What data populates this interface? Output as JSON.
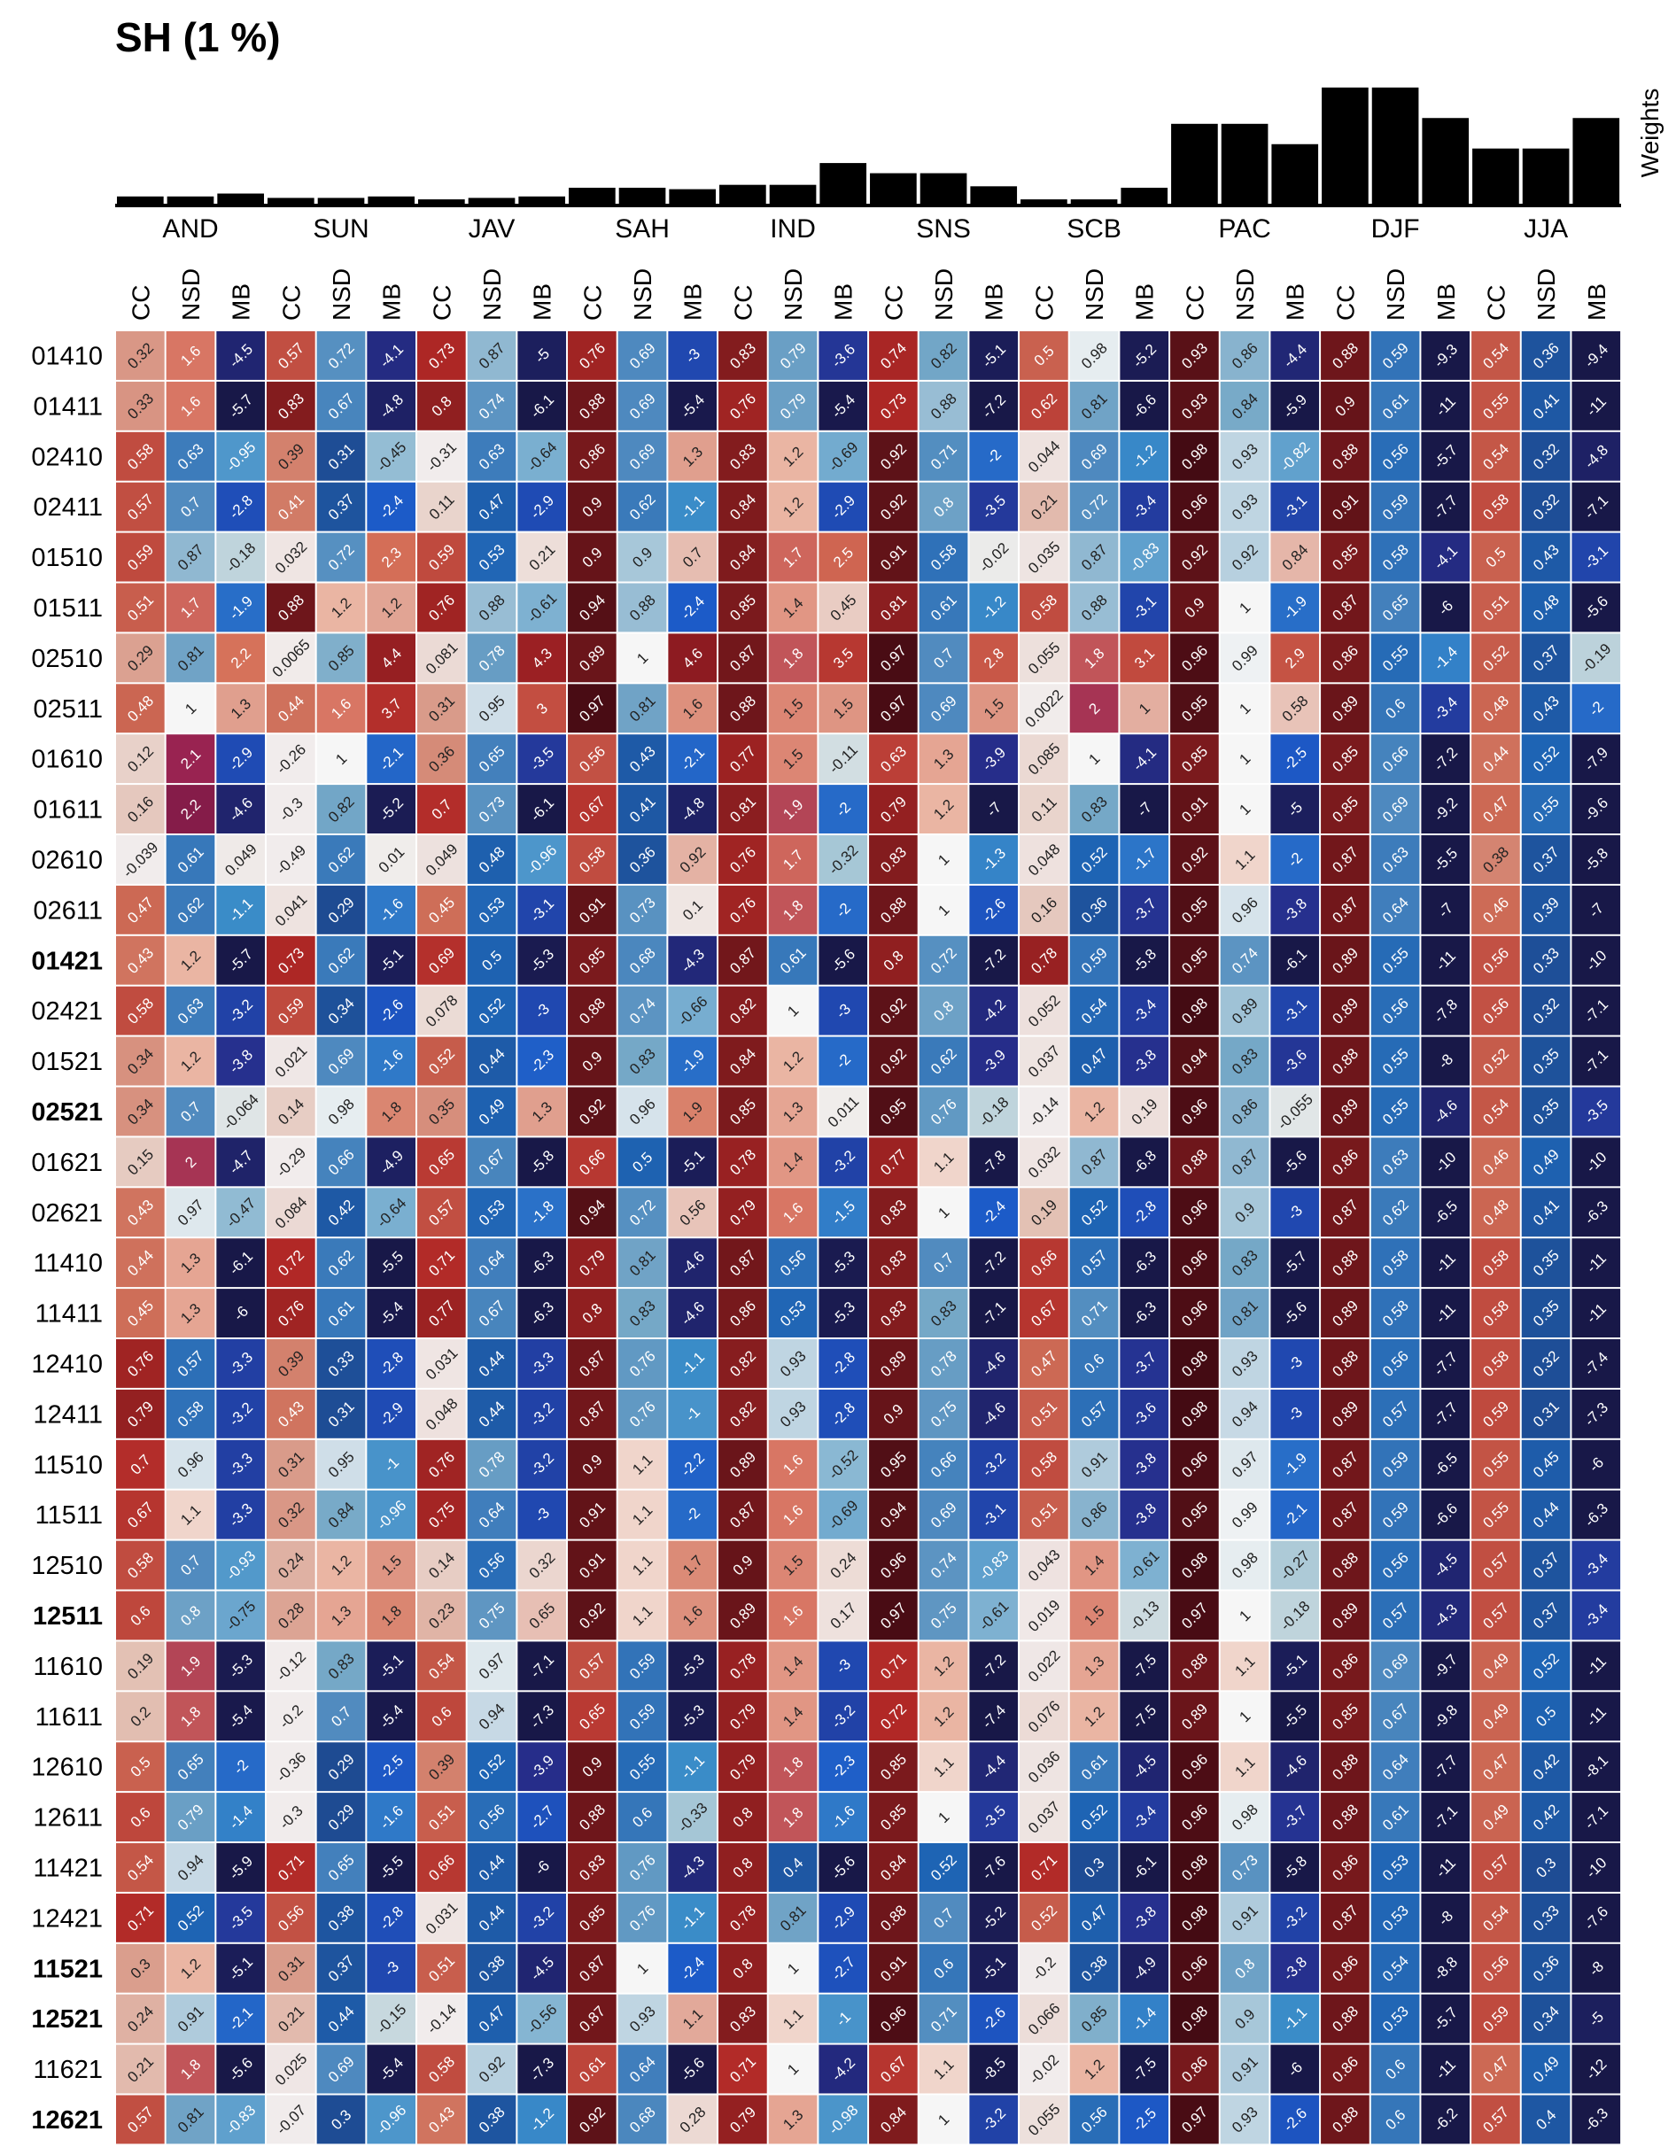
{
  "chart_data": {
    "type": "heatmap",
    "title": "SH (1 %)",
    "weights_label": "Weights",
    "regions": [
      "AND",
      "SUN",
      "JAV",
      "SAH",
      "IND",
      "SNS",
      "SCB",
      "PAC",
      "DJF",
      "JJA"
    ],
    "metrics": [
      "CC",
      "NSD",
      "MB"
    ],
    "weights": [
      0.05,
      0.05,
      0.07,
      0.04,
      0.04,
      0.05,
      0.03,
      0.04,
      0.05,
      0.11,
      0.11,
      0.1,
      0.13,
      0.13,
      0.28,
      0.21,
      0.21,
      0.12,
      0.03,
      0.03,
      0.11,
      0.55,
      0.55,
      0.41,
      0.8,
      0.8,
      0.59,
      0.38,
      0.38,
      0.59
    ],
    "row_labels": [
      "01410",
      "01411",
      "02410",
      "02411",
      "01510",
      "01511",
      "02510",
      "02511",
      "01610",
      "01611",
      "02610",
      "02611",
      "01421",
      "02421",
      "01521",
      "02521",
      "01621",
      "02621",
      "11410",
      "11411",
      "12410",
      "12411",
      "11510",
      "11511",
      "12510",
      "12511",
      "11610",
      "11611",
      "12610",
      "12611",
      "11421",
      "12421",
      "11521",
      "12521",
      "11621",
      "12621"
    ],
    "bold_rows": [
      "01421",
      "02521",
      "12511",
      "11521",
      "12521",
      "12621"
    ],
    "values": [
      [
        "0.32",
        "1.6",
        "-4.5",
        "0.57",
        "0.72",
        "-4.1",
        "0.73",
        "0.87",
        "-5",
        "0.76",
        "0.69",
        "-3",
        "0.83",
        "0.79",
        "-3.6",
        "0.74",
        "0.82",
        "-5.1",
        "0.5",
        "0.98",
        "-5.2",
        "0.93",
        "0.86",
        "-4.4",
        "0.88",
        "0.59",
        "-9.3",
        "0.54",
        "0.36",
        "-9.4"
      ],
      [
        "0.33",
        "1.6",
        "-5.7",
        "0.83",
        "0.67",
        "-4.8",
        "0.8",
        "0.74",
        "-6.1",
        "0.88",
        "0.69",
        "-5.4",
        "0.76",
        "0.79",
        "-5.4",
        "0.73",
        "0.88",
        "-7.2",
        "0.62",
        "0.81",
        "-6.6",
        "0.93",
        "0.84",
        "-5.9",
        "0.9",
        "0.61",
        "-11",
        "0.55",
        "0.41",
        "-11"
      ],
      [
        "0.58",
        "0.63",
        "-0.95",
        "0.39",
        "0.31",
        "-0.45",
        "-0.31",
        "0.63",
        "-0.64",
        "0.86",
        "0.69",
        "1.3",
        "0.83",
        "1.2",
        "-0.69",
        "0.92",
        "0.71",
        "-2",
        "0.044",
        "0.69",
        "-1.2",
        "0.98",
        "0.93",
        "-0.82",
        "0.88",
        "0.56",
        "-5.7",
        "0.54",
        "0.32",
        "-4.8"
      ],
      [
        "0.57",
        "0.7",
        "-2.8",
        "0.41",
        "0.37",
        "-2.4",
        "0.11",
        "0.47",
        "-2.9",
        "0.9",
        "0.62",
        "-1.1",
        "0.84",
        "1.2",
        "-2.9",
        "0.92",
        "0.8",
        "-3.5",
        "0.21",
        "0.72",
        "-3.4",
        "0.96",
        "0.93",
        "-3.1",
        "0.91",
        "0.59",
        "-7.7",
        "0.58",
        "0.32",
        "-7.1"
      ],
      [
        "0.59",
        "0.87",
        "-0.18",
        "0.032",
        "0.72",
        "2.3",
        "0.59",
        "0.53",
        "0.21",
        "0.9",
        "0.9",
        "0.7",
        "0.84",
        "1.7",
        "2.5",
        "0.91",
        "0.58",
        "-0.02",
        "0.035",
        "0.87",
        "-0.83",
        "0.92",
        "0.92",
        "0.84",
        "0.85",
        "0.58",
        "-4.1",
        "0.5",
        "0.43",
        "-3.1"
      ],
      [
        "0.51",
        "1.7",
        "-1.9",
        "0.88",
        "1.2",
        "1.2",
        "0.76",
        "0.88",
        "-0.61",
        "0.94",
        "0.88",
        "-2.4",
        "0.85",
        "1.4",
        "0.45",
        "0.81",
        "0.61",
        "-1.2",
        "0.58",
        "0.88",
        "-3.1",
        "0.9",
        "1",
        "-1.9",
        "0.87",
        "0.65",
        "-6",
        "0.51",
        "0.48",
        "-5.6"
      ],
      [
        "0.29",
        "0.81",
        "2.2",
        "0.0065",
        "0.85",
        "4.4",
        "0.081",
        "0.78",
        "4.3",
        "0.89",
        "1",
        "4.6",
        "0.87",
        "1.8",
        "3.5",
        "0.97",
        "0.7",
        "2.8",
        "0.055",
        "1.8",
        "3.1",
        "0.96",
        "0.99",
        "2.9",
        "0.86",
        "0.55",
        "-1.4",
        "0.52",
        "0.37",
        "-0.19"
      ],
      [
        "0.48",
        "1",
        "1.3",
        "0.44",
        "1.6",
        "3.7",
        "0.31",
        "0.95",
        "3",
        "0.97",
        "0.81",
        "1.6",
        "0.88",
        "1.5",
        "1.5",
        "0.97",
        "0.69",
        "1.5",
        "0.0022",
        "2",
        "1",
        "0.95",
        "1",
        "0.58",
        "0.89",
        "0.6",
        "-3.4",
        "0.48",
        "0.43",
        "-2"
      ],
      [
        "0.12",
        "2.1",
        "-2.9",
        "-0.26",
        "1",
        "-2.1",
        "0.36",
        "0.65",
        "-3.5",
        "0.56",
        "0.43",
        "-2.1",
        "0.77",
        "1.5",
        "-0.11",
        "0.63",
        "1.3",
        "-3.9",
        "0.085",
        "1",
        "-4.1",
        "0.85",
        "1",
        "-2.5",
        "0.85",
        "0.66",
        "-7.2",
        "0.44",
        "0.52",
        "-7.9"
      ],
      [
        "0.16",
        "2.2",
        "-4.6",
        "-0.3",
        "0.82",
        "-5.2",
        "0.7",
        "0.73",
        "-6.1",
        "0.67",
        "0.41",
        "-4.8",
        "0.81",
        "1.9",
        "-2",
        "0.79",
        "1.2",
        "-7",
        "0.11",
        "0.83",
        "-7",
        "0.91",
        "1",
        "-5",
        "0.85",
        "0.69",
        "-9.2",
        "0.47",
        "0.55",
        "-9.6"
      ],
      [
        "-0.039",
        "0.61",
        "0.049",
        "-0.49",
        "0.62",
        "0.01",
        "0.049",
        "0.48",
        "-0.96",
        "0.58",
        "0.36",
        "0.92",
        "0.76",
        "1.7",
        "-0.32",
        "0.83",
        "1",
        "-1.3",
        "0.048",
        "0.52",
        "-1.7",
        "0.92",
        "1.1",
        "-2",
        "0.87",
        "0.63",
        "-5.5",
        "0.38",
        "0.37",
        "-5.8"
      ],
      [
        "0.47",
        "0.62",
        "-1.1",
        "0.041",
        "0.29",
        "-1.6",
        "0.45",
        "0.53",
        "-3.1",
        "0.91",
        "0.73",
        "0.1",
        "0.76",
        "1.8",
        "-2",
        "0.88",
        "1",
        "-2.6",
        "0.16",
        "0.36",
        "-3.7",
        "0.95",
        "0.96",
        "-3.8",
        "0.87",
        "0.64",
        "-7",
        "0.46",
        "0.39",
        "-7"
      ],
      [
        "0.43",
        "1.2",
        "-5.7",
        "0.73",
        "0.62",
        "-5.1",
        "0.69",
        "0.5",
        "-5.3",
        "0.85",
        "0.68",
        "-4.3",
        "0.87",
        "0.61",
        "-5.6",
        "0.8",
        "0.72",
        "-7.2",
        "0.78",
        "0.59",
        "-5.8",
        "0.95",
        "0.74",
        "-6.1",
        "0.89",
        "0.55",
        "-11",
        "0.56",
        "0.33",
        "-10"
      ],
      [
        "0.58",
        "0.63",
        "-3.2",
        "0.59",
        "0.34",
        "-2.6",
        "0.078",
        "0.52",
        "-3",
        "0.88",
        "0.74",
        "-0.66",
        "0.82",
        "1",
        "-3",
        "0.92",
        "0.8",
        "-4.2",
        "0.052",
        "0.54",
        "-3.4",
        "0.98",
        "0.89",
        "-3.1",
        "0.89",
        "0.56",
        "-7.8",
        "0.56",
        "0.32",
        "-7.1"
      ],
      [
        "0.34",
        "1.2",
        "-3.8",
        "0.021",
        "0.69",
        "-1.6",
        "0.52",
        "0.44",
        "-2.3",
        "0.9",
        "0.83",
        "-1.9",
        "0.84",
        "1.2",
        "-2",
        "0.92",
        "0.62",
        "-3.9",
        "0.037",
        "0.47",
        "-3.8",
        "0.94",
        "0.83",
        "-3.6",
        "0.88",
        "0.55",
        "-8",
        "0.52",
        "0.35",
        "-7.1"
      ],
      [
        "0.34",
        "0.7",
        "-0.064",
        "0.14",
        "0.98",
        "1.8",
        "0.35",
        "0.49",
        "1.3",
        "0.92",
        "0.96",
        "1.9",
        "0.85",
        "1.3",
        "0.011",
        "0.95",
        "0.76",
        "-0.18",
        "-0.14",
        "1.2",
        "0.19",
        "0.96",
        "0.86",
        "-0.055",
        "0.89",
        "0.55",
        "-4.6",
        "0.54",
        "0.35",
        "-3.5"
      ],
      [
        "0.15",
        "2",
        "-4.7",
        "-0.29",
        "0.66",
        "-4.9",
        "0.65",
        "0.67",
        "-5.8",
        "0.66",
        "0.5",
        "-5.1",
        "0.78",
        "1.4",
        "-3.2",
        "0.77",
        "1.1",
        "-7.8",
        "0.032",
        "0.87",
        "-6.8",
        "0.88",
        "0.87",
        "-5.6",
        "0.86",
        "0.63",
        "-10",
        "0.46",
        "0.49",
        "-10"
      ],
      [
        "0.43",
        "0.97",
        "-0.47",
        "0.084",
        "0.42",
        "-0.64",
        "0.57",
        "0.53",
        "-1.8",
        "0.94",
        "0.72",
        "0.56",
        "0.79",
        "1.6",
        "-1.5",
        "0.83",
        "1",
        "-2.4",
        "0.19",
        "0.52",
        "-2.8",
        "0.96",
        "0.9",
        "-3",
        "0.87",
        "0.62",
        "-6.5",
        "0.48",
        "0.41",
        "-6.3"
      ],
      [
        "0.44",
        "1.3",
        "-6.1",
        "0.72",
        "0.62",
        "-5.5",
        "0.71",
        "0.64",
        "-6.3",
        "0.79",
        "0.81",
        "-4.6",
        "0.87",
        "0.56",
        "-5.3",
        "0.83",
        "0.7",
        "-7.2",
        "0.66",
        "0.57",
        "-6.3",
        "0.96",
        "0.83",
        "-5.7",
        "0.88",
        "0.58",
        "-11",
        "0.58",
        "0.35",
        "-11"
      ],
      [
        "0.45",
        "1.3",
        "-6",
        "0.76",
        "0.61",
        "-5.4",
        "0.77",
        "0.67",
        "-6.3",
        "0.8",
        "0.83",
        "-4.6",
        "0.86",
        "0.53",
        "-5.3",
        "0.83",
        "0.83",
        "-7.1",
        "0.67",
        "0.71",
        "-6.3",
        "0.96",
        "0.81",
        "-5.6",
        "0.89",
        "0.58",
        "-11",
        "0.58",
        "0.35",
        "-11"
      ],
      [
        "0.76",
        "0.57",
        "-3.3",
        "0.39",
        "0.33",
        "-2.8",
        "0.031",
        "0.44",
        "-3.3",
        "0.87",
        "0.76",
        "-1.1",
        "0.82",
        "0.93",
        "-2.8",
        "0.89",
        "0.78",
        "-4.6",
        "0.47",
        "0.6",
        "-3.7",
        "0.98",
        "0.93",
        "-3",
        "0.88",
        "0.56",
        "-7.7",
        "0.58",
        "0.32",
        "-7.4"
      ],
      [
        "0.79",
        "0.58",
        "-3.2",
        "0.43",
        "0.31",
        "-2.9",
        "0.048",
        "0.44",
        "-3.2",
        "0.87",
        "0.76",
        "-1",
        "0.82",
        "0.93",
        "-2.8",
        "0.9",
        "0.75",
        "-4.6",
        "0.51",
        "0.57",
        "-3.6",
        "0.98",
        "0.94",
        "-3",
        "0.89",
        "0.57",
        "-7.7",
        "0.59",
        "0.31",
        "-7.3"
      ],
      [
        "0.7",
        "0.96",
        "-3.3",
        "0.31",
        "0.95",
        "-1",
        "0.76",
        "0.78",
        "-3.2",
        "0.9",
        "1.1",
        "-2.2",
        "0.89",
        "1.6",
        "-0.52",
        "0.95",
        "0.66",
        "-3.2",
        "0.58",
        "0.91",
        "-3.8",
        "0.96",
        "0.97",
        "-1.9",
        "0.87",
        "0.59",
        "-6.5",
        "0.55",
        "0.45",
        "-6"
      ],
      [
        "0.67",
        "1.1",
        "-3.3",
        "0.32",
        "0.84",
        "-0.96",
        "0.75",
        "0.64",
        "-3",
        "0.91",
        "1.1",
        "-2",
        "0.87",
        "1.6",
        "-0.69",
        "0.94",
        "0.69",
        "-3.1",
        "0.51",
        "0.86",
        "-3.8",
        "0.95",
        "0.99",
        "-2.1",
        "0.87",
        "0.59",
        "-6.6",
        "0.55",
        "0.44",
        "-6.3"
      ],
      [
        "0.58",
        "0.7",
        "-0.93",
        "0.24",
        "1.2",
        "1.5",
        "0.14",
        "0.56",
        "0.32",
        "0.91",
        "1.1",
        "1.7",
        "0.9",
        "1.5",
        "0.24",
        "0.96",
        "0.74",
        "-0.83",
        "0.043",
        "1.4",
        "-0.61",
        "0.98",
        "0.98",
        "-0.27",
        "0.88",
        "0.56",
        "-4.5",
        "0.57",
        "0.37",
        "-3.4"
      ],
      [
        "0.6",
        "0.8",
        "-0.75",
        "0.28",
        "1.3",
        "1.8",
        "0.23",
        "0.75",
        "0.65",
        "0.92",
        "1.1",
        "1.6",
        "0.89",
        "1.6",
        "0.17",
        "0.97",
        "0.75",
        "-0.61",
        "0.019",
        "1.5",
        "-0.13",
        "0.97",
        "1",
        "-0.18",
        "0.89",
        "0.57",
        "-4.3",
        "0.57",
        "0.37",
        "-3.4"
      ],
      [
        "0.19",
        "1.9",
        "-5.3",
        "-0.12",
        "0.83",
        "-5.1",
        "0.54",
        "0.97",
        "-7.1",
        "0.57",
        "0.59",
        "-5.3",
        "0.78",
        "1.4",
        "-3",
        "0.71",
        "1.2",
        "-7.2",
        "0.022",
        "1.3",
        "-7.5",
        "0.88",
        "1.1",
        "-5.1",
        "0.86",
        "0.69",
        "-9.7",
        "0.49",
        "0.52",
        "-11"
      ],
      [
        "0.2",
        "1.8",
        "-5.4",
        "-0.2",
        "0.7",
        "-5.4",
        "0.6",
        "0.94",
        "-7.3",
        "0.65",
        "0.59",
        "-5.3",
        "0.79",
        "1.4",
        "-3.2",
        "0.72",
        "1.2",
        "-7.4",
        "0.076",
        "1.2",
        "-7.5",
        "0.89",
        "1",
        "-5.5",
        "0.85",
        "0.67",
        "-9.8",
        "0.49",
        "0.5",
        "-11"
      ],
      [
        "0.5",
        "0.65",
        "-2",
        "-0.36",
        "0.29",
        "-2.5",
        "0.39",
        "0.52",
        "-3.9",
        "0.9",
        "0.55",
        "-1.1",
        "0.79",
        "1.8",
        "-2.3",
        "0.85",
        "1.1",
        "-4.4",
        "0.036",
        "0.61",
        "-4.5",
        "0.96",
        "1.1",
        "-4.6",
        "0.88",
        "0.64",
        "-7.7",
        "0.47",
        "0.42",
        "-8.1"
      ],
      [
        "0.6",
        "0.79",
        "-1.4",
        "-0.3",
        "0.29",
        "-1.6",
        "0.51",
        "0.56",
        "-2.7",
        "0.88",
        "0.6",
        "-0.33",
        "0.8",
        "1.8",
        "-1.6",
        "0.85",
        "1",
        "-3.5",
        "0.037",
        "0.52",
        "-3.4",
        "0.96",
        "0.98",
        "-3.7",
        "0.88",
        "0.61",
        "-7.1",
        "0.49",
        "0.42",
        "-7.1"
      ],
      [
        "0.54",
        "0.94",
        "-5.9",
        "0.71",
        "0.65",
        "-5.5",
        "0.66",
        "0.44",
        "-6",
        "0.83",
        "0.76",
        "-4.3",
        "0.8",
        "0.4",
        "-5.6",
        "0.84",
        "0.52",
        "-7.6",
        "0.71",
        "0.3",
        "-6.1",
        "0.98",
        "0.73",
        "-5.8",
        "0.86",
        "0.53",
        "-11",
        "0.57",
        "0.3",
        "-10"
      ],
      [
        "0.71",
        "0.52",
        "-3.5",
        "0.56",
        "0.38",
        "-2.8",
        "0.031",
        "0.44",
        "-3.2",
        "0.85",
        "0.76",
        "-1.1",
        "0.78",
        "0.81",
        "-2.9",
        "0.88",
        "0.7",
        "-5.2",
        "0.52",
        "0.47",
        "-3.8",
        "0.98",
        "0.91",
        "-3.2",
        "0.87",
        "0.53",
        "-8",
        "0.54",
        "0.33",
        "-7.6"
      ],
      [
        "0.3",
        "1.2",
        "-5.1",
        "0.31",
        "0.37",
        "-3",
        "0.51",
        "0.38",
        "-4.5",
        "0.87",
        "1",
        "-2.4",
        "0.8",
        "1",
        "-2.7",
        "0.91",
        "0.6",
        "-5.1",
        "-0.2",
        "0.38",
        "-4.9",
        "0.96",
        "0.8",
        "-3.8",
        "0.86",
        "0.54",
        "-8.8",
        "0.56",
        "0.36",
        "-8"
      ],
      [
        "0.24",
        "0.91",
        "-2.1",
        "0.21",
        "0.44",
        "-0.15",
        "-0.14",
        "0.47",
        "-0.56",
        "0.87",
        "0.93",
        "1.1",
        "0.83",
        "1.1",
        "-1",
        "0.96",
        "0.71",
        "-2.6",
        "0.066",
        "0.85",
        "-1.4",
        "0.98",
        "0.9",
        "-1.1",
        "0.88",
        "0.53",
        "-5.7",
        "0.59",
        "0.34",
        "-5"
      ],
      [
        "0.21",
        "1.8",
        "-5.6",
        "0.025",
        "0.69",
        "-5.4",
        "0.58",
        "0.92",
        "-7.3",
        "0.61",
        "0.64",
        "-5.6",
        "0.71",
        "1",
        "-4.2",
        "0.67",
        "1.1",
        "-8.5",
        "-0.02",
        "1.2",
        "-7.5",
        "0.86",
        "0.91",
        "-6",
        "0.86",
        "0.6",
        "-11",
        "0.47",
        "0.49",
        "-12"
      ],
      [
        "0.57",
        "0.81",
        "-0.83",
        "-0.07",
        "0.3",
        "-0.96",
        "0.43",
        "0.38",
        "-1.2",
        "0.92",
        "0.68",
        "0.28",
        "0.79",
        "1.3",
        "-0.98",
        "0.84",
        "1",
        "-3.2",
        "0.055",
        "0.56",
        "-2.5",
        "0.97",
        "0.93",
        "-2.6",
        "0.88",
        "0.6",
        "-6.2",
        "0.57",
        "0.4",
        "-6.3"
      ]
    ]
  }
}
